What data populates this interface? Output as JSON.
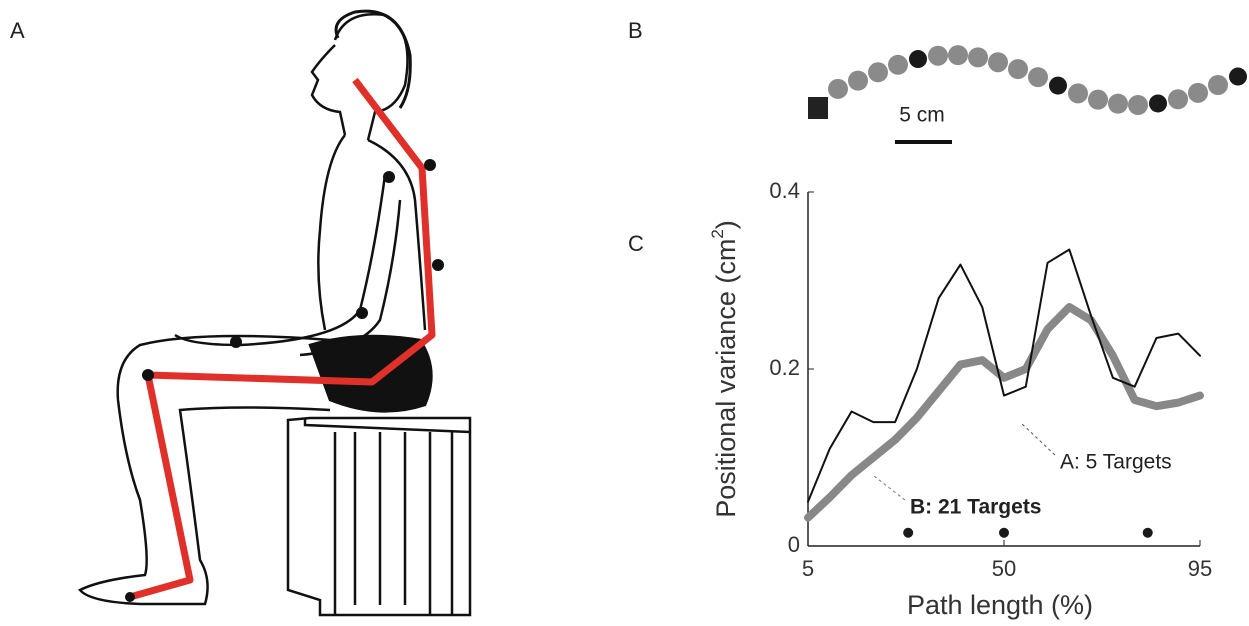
{
  "panels": {
    "a": "A",
    "b": "B",
    "c": "C"
  },
  "scale_bar": "5 cm",
  "chart_data": {
    "type": "line",
    "x_label": "Path length (%)",
    "y_label": {
      "text": "Positional variance (cm",
      "sup": "2",
      "end": ")"
    },
    "x": [
      5,
      10,
      15,
      20,
      25,
      30,
      35,
      40,
      45,
      50,
      55,
      60,
      65,
      70,
      75,
      80,
      85,
      90,
      95
    ],
    "series": [
      {
        "name": "A: 5 Targets",
        "color": "#111111",
        "width": 2,
        "values": [
          0.05,
          0.11,
          0.152,
          0.14,
          0.14,
          0.2,
          0.28,
          0.318,
          0.27,
          0.17,
          0.18,
          0.32,
          0.335,
          0.26,
          0.19,
          0.18,
          0.235,
          0.24,
          0.215
        ]
      },
      {
        "name": "B: 21 Targets",
        "color": "#888888",
        "width": 8,
        "values": [
          0.032,
          0.055,
          0.08,
          0.1,
          0.12,
          0.145,
          0.175,
          0.205,
          0.21,
          0.19,
          0.2,
          0.245,
          0.27,
          0.255,
          0.215,
          0.165,
          0.158,
          0.162,
          0.17
        ]
      }
    ],
    "targets": {
      "x": [
        28,
        50,
        83
      ],
      "y": [
        0.015,
        0.015,
        0.015
      ]
    },
    "xlim": [
      5,
      95
    ],
    "xticks": [
      5,
      50,
      95
    ],
    "ylim": [
      0,
      0.4
    ],
    "yticks": [
      0,
      0.2,
      0.4
    ]
  }
}
